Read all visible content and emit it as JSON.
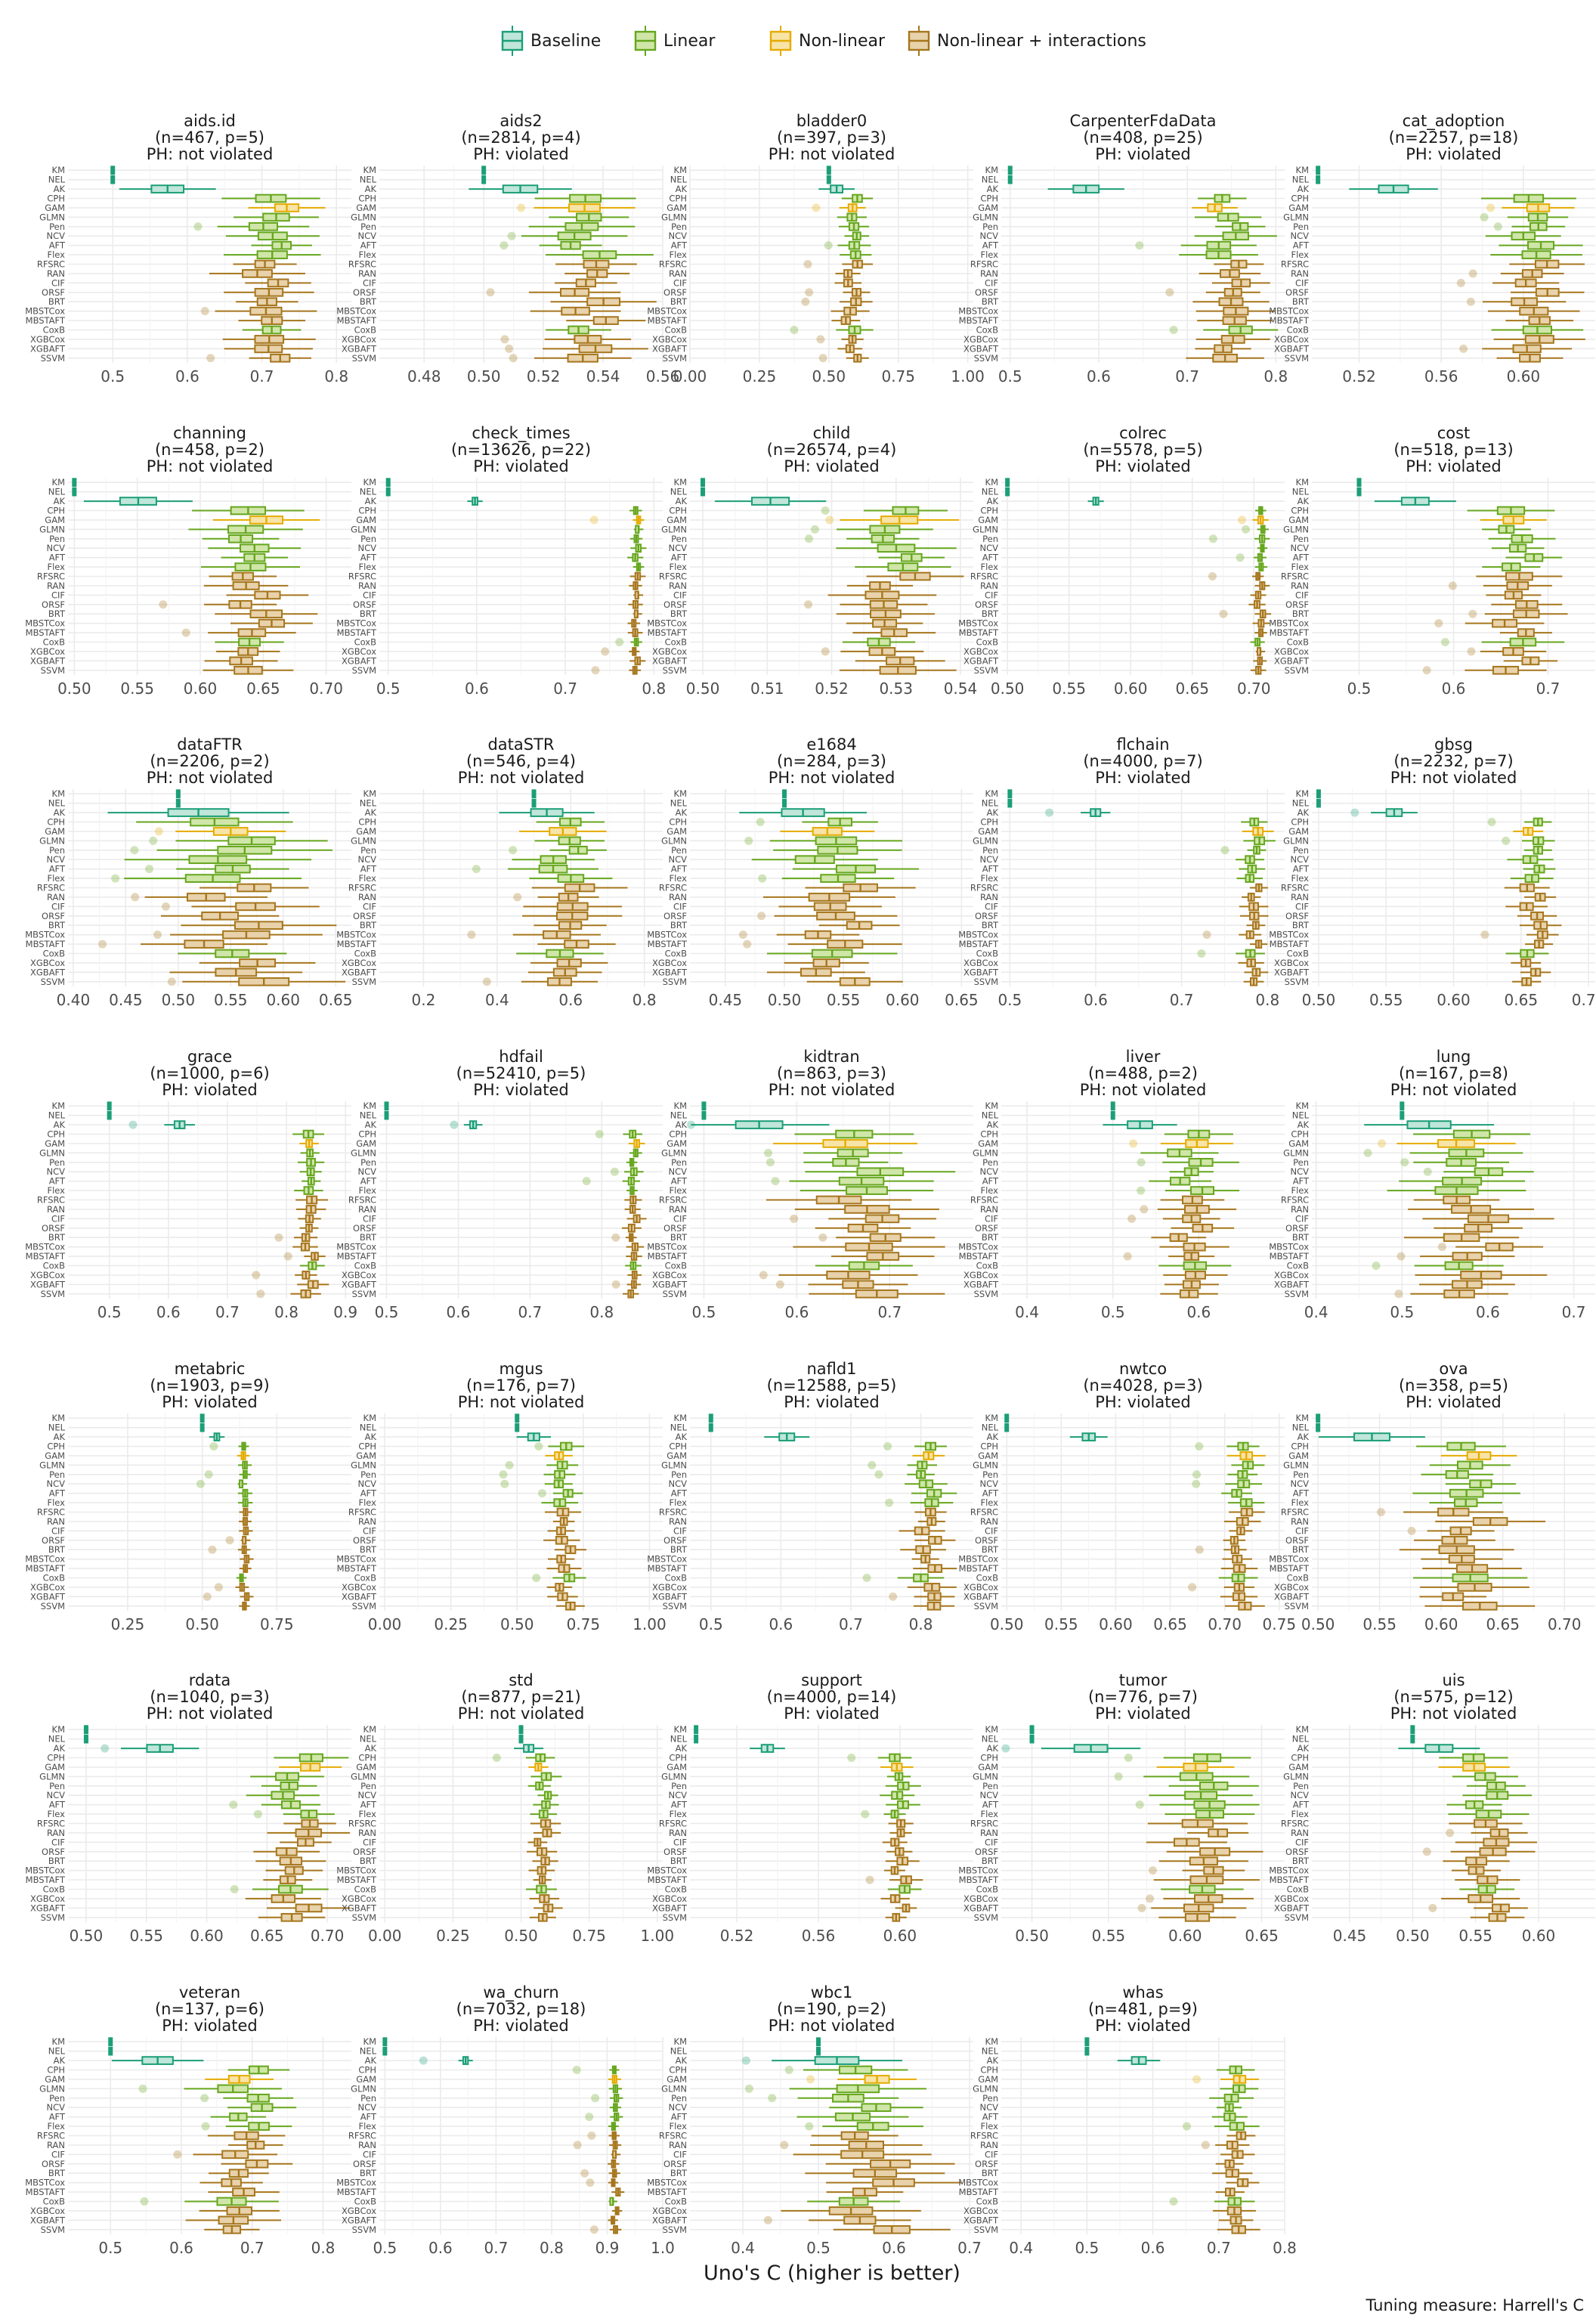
{
  "chart_data": {
    "type": "boxplot",
    "xlabel": "Uno's C (higher is better)",
    "caption": "Tuning measure: Harrell's C",
    "legend": {
      "position": "top",
      "entries": [
        {
          "key": "baseline",
          "label": "Baseline"
        },
        {
          "key": "linear",
          "label": "Linear"
        },
        {
          "key": "nonlinear",
          "label": "Non-linear"
        },
        {
          "key": "interactions",
          "label": "Non-linear + interactions"
        }
      ]
    },
    "colors": {
      "baseline": {
        "stroke": "#1b9e77",
        "fill": "#bfe6d9"
      },
      "linear": {
        "stroke": "#66a61e",
        "fill": "#cfe6a8"
      },
      "nonlinear": {
        "stroke": "#e6ab02",
        "fill": "#f7e4a6"
      },
      "interactions": {
        "stroke": "#a6761d",
        "fill": "#e8d2ab"
      }
    },
    "learners": [
      "KM",
      "NEL",
      "AK",
      "CPH",
      "GAM",
      "GLMN",
      "Pen",
      "NCV",
      "AFT",
      "Flex",
      "RFSRC",
      "RAN",
      "CIF",
      "ORSF",
      "BRT",
      "MBSTCox",
      "MBSTAFT",
      "CoxB",
      "XGBCox",
      "XGBAFT",
      "SSVM"
    ],
    "learner_groups": [
      "baseline",
      "baseline",
      "baseline",
      "linear",
      "nonlinear",
      "linear",
      "linear",
      "linear",
      "linear",
      "linear",
      "interactions",
      "interactions",
      "interactions",
      "interactions",
      "interactions",
      "interactions",
      "interactions",
      "linear",
      "interactions",
      "interactions",
      "interactions"
    ],
    "panels": [
      {
        "name": "aids.id",
        "info": "(n=467, p=5)",
        "ph": "PH: not violated",
        "xlim": [
          0.44,
          0.82
        ],
        "ticks": [
          0.5,
          0.6,
          0.7,
          0.8
        ],
        "tick_labels": [
          "0.5",
          "0.6",
          "0.7",
          "0.8"
        ],
        "center": 0.71,
        "spread": 0.03
      },
      {
        "name": "aids2",
        "info": "(n=2814, p=4)",
        "ph": "PH: violated",
        "xlim": [
          0.465,
          0.56
        ],
        "ticks": [
          0.48,
          0.5,
          0.52,
          0.54,
          0.56
        ],
        "tick_labels": [
          "0.48",
          "0.50",
          "0.52",
          "0.54",
          "0.56"
        ],
        "center": 0.535,
        "spread": 0.008
      },
      {
        "name": "bladder0",
        "info": "(n=397, p=3)",
        "ph": "PH: not violated",
        "xlim": [
          0.0,
          1.02
        ],
        "ticks": [
          0.0,
          0.25,
          0.5,
          0.75,
          1.0
        ],
        "tick_labels": [
          "0.00",
          "0.25",
          "0.50",
          "0.75",
          "1.00"
        ],
        "center": 0.58,
        "spread": 0.03
      },
      {
        "name": "CarpenterFdaData",
        "info": "(n=408, p=25)",
        "ph": "PH: violated",
        "xlim": [
          0.49,
          0.81
        ],
        "ticks": [
          0.5,
          0.6,
          0.7,
          0.8
        ],
        "tick_labels": [
          "0.5",
          "0.6",
          "0.7",
          "0.8"
        ],
        "center": 0.745,
        "spread": 0.02
      },
      {
        "name": "cat_adoption",
        "info": "(n=2257, p=18)",
        "ph": "PH: violated",
        "xlim": [
          0.497,
          0.635
        ],
        "ticks": [
          0.52,
          0.56,
          0.6
        ],
        "tick_labels": [
          "0.52",
          "0.56",
          "0.60"
        ],
        "center": 0.605,
        "spread": 0.01
      },
      {
        "name": "channing",
        "info": "(n=458, p=2)",
        "ph": "PH: not violated",
        "xlim": [
          0.495,
          0.72
        ],
        "ticks": [
          0.5,
          0.55,
          0.6,
          0.65,
          0.7
        ],
        "tick_labels": [
          "0.50",
          "0.55",
          "0.60",
          "0.65",
          "0.70"
        ],
        "center": 0.645,
        "spread": 0.02
      },
      {
        "name": "check_times",
        "info": "(n=13626, p=22)",
        "ph": "PH: violated",
        "xlim": [
          0.49,
          0.81
        ],
        "ticks": [
          0.5,
          0.6,
          0.7,
          0.8
        ],
        "tick_labels": [
          "0.5",
          "0.6",
          "0.7",
          "0.8"
        ],
        "center": 0.78,
        "spread": 0.004
      },
      {
        "name": "child",
        "info": "(n=26574, p=4)",
        "ph": "PH: violated",
        "xlim": [
          0.498,
          0.542
        ],
        "ticks": [
          0.5,
          0.51,
          0.52,
          0.53,
          0.54
        ],
        "tick_labels": [
          "0.50",
          "0.51",
          "0.52",
          "0.53",
          "0.54"
        ],
        "center": 0.53,
        "spread": 0.004
      },
      {
        "name": "colrec",
        "info": "(n=5578, p=5)",
        "ph": "PH: violated",
        "xlim": [
          0.495,
          0.725
        ],
        "ticks": [
          0.5,
          0.55,
          0.6,
          0.65,
          0.7
        ],
        "tick_labels": [
          "0.50",
          "0.55",
          "0.60",
          "0.65",
          "0.70"
        ],
        "center": 0.705,
        "spread": 0.003
      },
      {
        "name": "cost",
        "info": "(n=518, p=13)",
        "ph": "PH: violated",
        "xlim": [
          0.45,
          0.75
        ],
        "ticks": [
          0.5,
          0.6,
          0.7
        ],
        "tick_labels": [
          "0.5",
          "0.6",
          "0.7"
        ],
        "center": 0.67,
        "spread": 0.02
      },
      {
        "name": "dataFTR",
        "info": "(n=2206, p=2)",
        "ph": "PH: not violated",
        "xlim": [
          0.395,
          0.665
        ],
        "ticks": [
          0.4,
          0.45,
          0.5,
          0.55,
          0.6,
          0.65
        ],
        "tick_labels": [
          "0.40",
          "0.45",
          "0.50",
          "0.55",
          "0.60",
          "0.65"
        ],
        "center": 0.555,
        "spread": 0.04
      },
      {
        "name": "dataSTR",
        "info": "(n=546, p=4)",
        "ph": "PH: not violated",
        "xlim": [
          0.08,
          0.85
        ],
        "ticks": [
          0.2,
          0.4,
          0.6,
          0.8
        ],
        "tick_labels": [
          "0.2",
          "0.4",
          "0.6",
          "0.8"
        ],
        "center": 0.6,
        "spread": 0.06
      },
      {
        "name": "e1684",
        "info": "(n=284, p=3)",
        "ph": "PH: not violated",
        "xlim": [
          0.42,
          0.66
        ],
        "ticks": [
          0.45,
          0.5,
          0.55,
          0.6,
          0.65
        ],
        "tick_labels": [
          "0.45",
          "0.50",
          "0.55",
          "0.60",
          "0.65"
        ],
        "center": 0.545,
        "spread": 0.025
      },
      {
        "name": "flchain",
        "info": "(n=4000, p=7)",
        "ph": "PH: violated",
        "xlim": [
          0.49,
          0.82
        ],
        "ticks": [
          0.5,
          0.6,
          0.7,
          0.8
        ],
        "tick_labels": [
          "0.5",
          "0.6",
          "0.7",
          "0.8"
        ],
        "center": 0.785,
        "spread": 0.008
      },
      {
        "name": "gbsg",
        "info": "(n=2232, p=7)",
        "ph": "PH: not violated",
        "xlim": [
          0.495,
          0.705
        ],
        "ticks": [
          0.5,
          0.55,
          0.6,
          0.65,
          0.7
        ],
        "tick_labels": [
          "0.50",
          "0.55",
          "0.60",
          "0.65",
          "0.70"
        ],
        "center": 0.66,
        "spread": 0.008
      },
      {
        "name": "grace",
        "info": "(n=1000, p=6)",
        "ph": "PH: violated",
        "xlim": [
          0.43,
          0.91
        ],
        "ticks": [
          0.5,
          0.6,
          0.7,
          0.8,
          0.9
        ],
        "tick_labels": [
          "0.5",
          "0.6",
          "0.7",
          "0.8",
          "0.9"
        ],
        "center": 0.84,
        "spread": 0.012
      },
      {
        "name": "hdfail",
        "info": "(n=52410, p=5)",
        "ph": "PH: violated",
        "xlim": [
          0.49,
          0.885
        ],
        "ticks": [
          0.5,
          0.6,
          0.7,
          0.8
        ],
        "tick_labels": [
          "0.5",
          "0.6",
          "0.7",
          "0.8"
        ],
        "center": 0.845,
        "spread": 0.006
      },
      {
        "name": "kidtran",
        "info": "(n=863, p=3)",
        "ph": "PH: not violated",
        "xlim": [
          0.485,
          0.79
        ],
        "ticks": [
          0.5,
          0.6,
          0.7
        ],
        "tick_labels": [
          "0.5",
          "0.6",
          "0.7"
        ],
        "center": 0.67,
        "spread": 0.035
      },
      {
        "name": "liver",
        "info": "(n=488, p=2)",
        "ph": "PH: not violated",
        "xlim": [
          0.37,
          0.7
        ],
        "ticks": [
          0.4,
          0.5,
          0.6
        ],
        "tick_labels": [
          "0.4",
          "0.5",
          "0.6"
        ],
        "center": 0.59,
        "spread": 0.02
      },
      {
        "name": "lung",
        "info": "(n=167, p=8)",
        "ph": "PH: not violated",
        "xlim": [
          0.395,
          0.725
        ],
        "ticks": [
          0.4,
          0.5,
          0.6,
          0.7
        ],
        "tick_labels": [
          "0.4",
          "0.5",
          "0.6",
          "0.7"
        ],
        "center": 0.59,
        "spread": 0.035
      },
      {
        "name": "metabric",
        "info": "(n=1903, p=9)",
        "ph": "PH: violated",
        "xlim": [
          0.05,
          1.0
        ],
        "ticks": [
          0.25,
          0.5,
          0.75
        ],
        "tick_labels": [
          "0.25",
          "0.50",
          "0.75"
        ],
        "center": 0.64,
        "spread": 0.012
      },
      {
        "name": "mgus",
        "info": "(n=176, p=7)",
        "ph": "PH: not violated",
        "xlim": [
          -0.02,
          1.05
        ],
        "ticks": [
          0.0,
          0.25,
          0.5,
          0.75,
          1.0
        ],
        "tick_labels": [
          "0.00",
          "0.25",
          "0.50",
          "0.75",
          "1.00"
        ],
        "center": 0.68,
        "spread": 0.03
      },
      {
        "name": "nafld1",
        "info": "(n=12588, p=5)",
        "ph": "PH: violated",
        "xlim": [
          0.47,
          0.875
        ],
        "ticks": [
          0.5,
          0.6,
          0.7,
          0.8
        ],
        "tick_labels": [
          "0.5",
          "0.6",
          "0.7",
          "0.8"
        ],
        "center": 0.81,
        "spread": 0.015
      },
      {
        "name": "nwtco",
        "info": "(n=4028, p=3)",
        "ph": "PH: violated",
        "xlim": [
          0.495,
          0.755
        ],
        "ticks": [
          0.5,
          0.55,
          0.6,
          0.65,
          0.7,
          0.75
        ],
        "tick_labels": [
          "0.50",
          "0.55",
          "0.60",
          "0.65",
          "0.70",
          "0.75"
        ],
        "center": 0.715,
        "spread": 0.008
      },
      {
        "name": "ova",
        "info": "(n=358, p=5)",
        "ph": "PH: violated",
        "xlim": [
          0.495,
          0.725
        ],
        "ticks": [
          0.5,
          0.55,
          0.6,
          0.65,
          0.7
        ],
        "tick_labels": [
          "0.50",
          "0.55",
          "0.60",
          "0.65",
          "0.70"
        ],
        "center": 0.625,
        "spread": 0.02
      },
      {
        "name": "rdata",
        "info": "(n=1040, p=3)",
        "ph": "PH: not violated",
        "xlim": [
          0.485,
          0.72
        ],
        "ticks": [
          0.5,
          0.55,
          0.6,
          0.65,
          0.7
        ],
        "tick_labels": [
          "0.50",
          "0.55",
          "0.60",
          "0.65",
          "0.70"
        ],
        "center": 0.675,
        "spread": 0.015
      },
      {
        "name": "std",
        "info": "(n=877, p=21)",
        "ph": "PH: not violated",
        "xlim": [
          -0.02,
          1.02
        ],
        "ticks": [
          0.0,
          0.25,
          0.5,
          0.75,
          1.0
        ],
        "tick_labels": [
          "0.00",
          "0.25",
          "0.50",
          "0.75",
          "1.00"
        ],
        "center": 0.58,
        "spread": 0.025
      },
      {
        "name": "support",
        "info": "(n=4000, p=14)",
        "ph": "PH: violated",
        "xlim": [
          0.497,
          0.636
        ],
        "ticks": [
          0.52,
          0.56,
          0.6
        ],
        "tick_labels": [
          "0.52",
          "0.56",
          "0.60"
        ],
        "center": 0.6,
        "spread": 0.004
      },
      {
        "name": "tumor",
        "info": "(n=776, p=7)",
        "ph": "PH: violated",
        "xlim": [
          0.48,
          0.665
        ],
        "ticks": [
          0.5,
          0.55,
          0.6,
          0.65
        ],
        "tick_labels": [
          "0.50",
          "0.55",
          "0.60",
          "0.65"
        ],
        "center": 0.61,
        "spread": 0.015
      },
      {
        "name": "uis",
        "info": "(n=575, p=12)",
        "ph": "PH: not violated",
        "xlim": [
          0.42,
          0.645
        ],
        "ticks": [
          0.45,
          0.5,
          0.55,
          0.6
        ],
        "tick_labels": [
          "0.45",
          "0.50",
          "0.55",
          "0.60"
        ],
        "center": 0.56,
        "spread": 0.015
      },
      {
        "name": "veteran",
        "info": "(n=137, p=6)",
        "ph": "PH: violated",
        "xlim": [
          0.44,
          0.84
        ],
        "ticks": [
          0.5,
          0.6,
          0.7,
          0.8
        ],
        "tick_labels": [
          "0.5",
          "0.6",
          "0.7",
          "0.8"
        ],
        "center": 0.69,
        "spread": 0.03
      },
      {
        "name": "wa_churn",
        "info": "(n=7032, p=18)",
        "ph": "PH: violated",
        "xlim": [
          0.49,
          1.0
        ],
        "ticks": [
          0.5,
          0.6,
          0.7,
          0.8,
          0.9,
          1.0
        ],
        "tick_labels": [
          "0.5",
          "0.6",
          "0.7",
          "0.8",
          "0.9",
          "1.0"
        ],
        "center": 0.915,
        "spread": 0.006
      },
      {
        "name": "wbc1",
        "info": "(n=190, p=2)",
        "ph": "PH: not violated",
        "xlim": [
          0.33,
          0.705
        ],
        "ticks": [
          0.4,
          0.5,
          0.6,
          0.7
        ],
        "tick_labels": [
          "0.4",
          "0.5",
          "0.6",
          "0.7"
        ],
        "center": 0.57,
        "spread": 0.04
      },
      {
        "name": "whas",
        "info": "(n=481, p=9)",
        "ph": "PH: violated",
        "xlim": [
          0.37,
          0.8
        ],
        "ticks": [
          0.4,
          0.5,
          0.6,
          0.7,
          0.8
        ],
        "tick_labels": [
          "0.4",
          "0.5",
          "0.6",
          "0.7",
          "0.8"
        ],
        "center": 0.725,
        "spread": 0.015
      }
    ]
  }
}
